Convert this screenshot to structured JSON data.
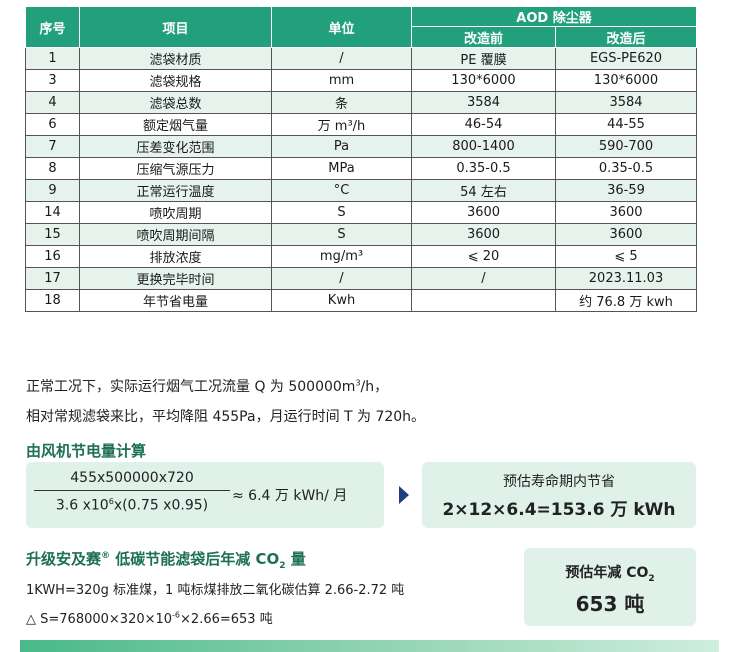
{
  "table": {
    "headers": {
      "no": "序号",
      "item": "项目",
      "unit": "单位",
      "group": "AOD 除尘器",
      "before": "改造前",
      "after": "改造后"
    },
    "rows": [
      [
        "1",
        "滤袋材质",
        "/",
        "PE 覆膜",
        "EGS-PE620"
      ],
      [
        "3",
        "滤袋规格",
        "mm",
        "130*6000",
        "130*6000"
      ],
      [
        "4",
        "滤袋总数",
        "条",
        "3584",
        "3584"
      ],
      [
        "6",
        "额定烟气量",
        "万 m³/h",
        "46-54",
        "44-55"
      ],
      [
        "7",
        "压差变化范围",
        "Pa",
        "800-1400",
        "590-700"
      ],
      [
        "8",
        "压缩气源压力",
        "MPa",
        "0.35-0.5",
        "0.35-0.5"
      ],
      [
        "9",
        "正常运行温度",
        "°C",
        "54 左右",
        "36-59"
      ],
      [
        "14",
        "喷吹周期",
        "S",
        "3600",
        "3600"
      ],
      [
        "15",
        "喷吹周期间隔",
        "S",
        "3600",
        "3600"
      ],
      [
        "16",
        "排放浓度",
        "mg/m³",
        "⩽ 20",
        "⩽ 5"
      ],
      [
        "17",
        "更换完毕时间",
        "/",
        "/",
        "2023.11.03"
      ],
      [
        "18",
        "年节省电量",
        "Kwh",
        "",
        "约 76.8 万 kwh"
      ]
    ]
  },
  "notes": {
    "line1_a": "正常工况下，实际运行烟气工况流量 Q 为 500000m",
    "line1_sup": "3",
    "line1_b": "/h，",
    "line2": "相对常规滤袋来比，平均降阻 455Pa，月运行时间 T 为 720h。"
  },
  "power": {
    "heading": "由风机节电量计算",
    "numerator": "455x500000x720",
    "den_a": "3.6 x10",
    "den_sup": "6",
    "den_b": "x(0.75 x0.95)",
    "approx": "≈ 6.4 万 kWh/ 月",
    "result_title": "预估寿命期内节省",
    "result_value": "2×12×6.4=153.6 万 kWh"
  },
  "co2": {
    "heading_a": "升级安及赛",
    "heading_reg": "®",
    "heading_b": " 低碳节能滤袋后年减 CO",
    "heading_sub": "2",
    "heading_c": " 量",
    "line1": "1KWH=320g 标准煤，1 吨标煤排放二氧化碳估算 2.66-2.72 吨",
    "line2_a": "△ S=768000×320×10",
    "line2_sup": "-6",
    "line2_b": "×2.66=653 吨",
    "box_title_a": "预估年减 CO",
    "box_title_sub": "2",
    "box_value": "653 吨"
  },
  "colors": {
    "header_green": "#22a07b",
    "row_tint": "#e5f3ec",
    "box_tint": "#dff1e8",
    "heading_green": "#1d6f57",
    "arrow": "#1f3f7a"
  }
}
